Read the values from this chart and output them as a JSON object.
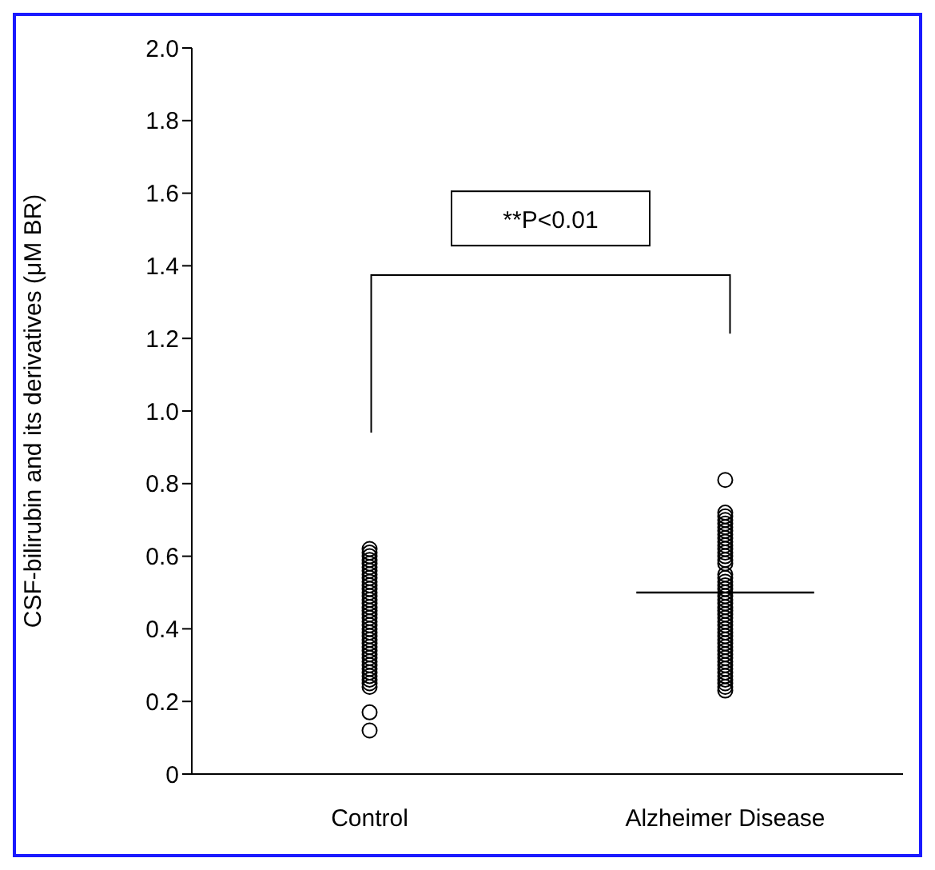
{
  "chart_data": {
    "type": "scatter",
    "ylabel": "CSF-bilirubin and its derivatives (μM BR)",
    "categories": [
      "Control",
      "Alzheimer Disease"
    ],
    "ylim": [
      0,
      2
    ],
    "yticks": [
      0,
      0.2,
      0.4,
      0.6,
      0.8,
      {
        "value": 1,
        "label": "1.0"
      },
      1.2,
      1.4,
      1.6,
      1.8,
      {
        "value": 2,
        "label": "2.0"
      }
    ],
    "marker": "circle",
    "ref_lines": [
      {
        "axis": "y",
        "value": 0.5,
        "color": "#000000"
      }
    ],
    "annotations": [
      "**P<0.01"
    ],
    "series": [
      {
        "color": "#000000",
        "x": [
          "Control",
          "Control",
          "Control",
          "Control",
          "Control",
          "Control",
          "Control",
          "Control",
          "Control",
          "Control",
          "Control",
          "Control",
          "Control",
          "Control",
          "Control",
          "Control",
          "Control",
          "Control",
          "Control",
          "Control",
          "Control",
          "Control",
          "Control",
          "Control",
          "Control",
          "Control",
          "Control",
          "Control",
          "Control",
          "Control",
          "Control",
          "Control",
          "Control",
          "Control",
          "Control",
          "Control",
          "Control",
          "Control",
          "Control",
          "Control",
          "Control",
          "Alzheimer Disease",
          "Alzheimer Disease",
          "Alzheimer Disease",
          "Alzheimer Disease",
          "Alzheimer Disease",
          "Alzheimer Disease",
          "Alzheimer Disease",
          "Alzheimer Disease",
          "Alzheimer Disease",
          "Alzheimer Disease",
          "Alzheimer Disease",
          "Alzheimer Disease",
          "Alzheimer Disease",
          "Alzheimer Disease",
          "Alzheimer Disease",
          "Alzheimer Disease",
          "Alzheimer Disease",
          "Alzheimer Disease",
          "Alzheimer Disease",
          "Alzheimer Disease",
          "Alzheimer Disease",
          "Alzheimer Disease",
          "Alzheimer Disease",
          "Alzheimer Disease",
          "Alzheimer Disease",
          "Alzheimer Disease",
          "Alzheimer Disease",
          "Alzheimer Disease",
          "Alzheimer Disease",
          "Alzheimer Disease",
          "Alzheimer Disease",
          "Alzheimer Disease",
          "Alzheimer Disease",
          "Alzheimer Disease",
          "Alzheimer Disease",
          "Alzheimer Disease",
          "Alzheimer Disease",
          "Alzheimer Disease",
          "Alzheimer Disease",
          "Alzheimer Disease",
          "Alzheimer Disease",
          "Alzheimer Disease",
          "Alzheimer Disease",
          "Alzheimer Disease",
          "Alzheimer Disease",
          "Alzheimer Disease",
          "Alzheimer Disease",
          "Alzheimer Disease",
          "Alzheimer Disease"
        ],
        "values": [
          0.12,
          0.17,
          0.24,
          0.25,
          0.26,
          0.27,
          0.28,
          0.29,
          0.3,
          0.31,
          0.32,
          0.33,
          0.34,
          0.35,
          0.36,
          0.37,
          0.38,
          0.39,
          0.4,
          0.41,
          0.42,
          0.43,
          0.44,
          0.45,
          0.46,
          0.47,
          0.48,
          0.49,
          0.5,
          0.51,
          0.52,
          0.53,
          0.54,
          0.55,
          0.56,
          0.57,
          0.58,
          0.59,
          0.6,
          0.61,
          0.62,
          0.23,
          0.24,
          0.25,
          0.26,
          0.27,
          0.28,
          0.29,
          0.3,
          0.31,
          0.32,
          0.33,
          0.34,
          0.35,
          0.36,
          0.37,
          0.38,
          0.39,
          0.4,
          0.41,
          0.42,
          0.43,
          0.44,
          0.45,
          0.46,
          0.47,
          0.48,
          0.49,
          0.5,
          0.51,
          0.52,
          0.53,
          0.54,
          0.55,
          0.58,
          0.59,
          0.6,
          0.61,
          0.62,
          0.63,
          0.64,
          0.65,
          0.66,
          0.67,
          0.68,
          0.69,
          0.7,
          0.71,
          0.72,
          0.81
        ]
      }
    ]
  }
}
